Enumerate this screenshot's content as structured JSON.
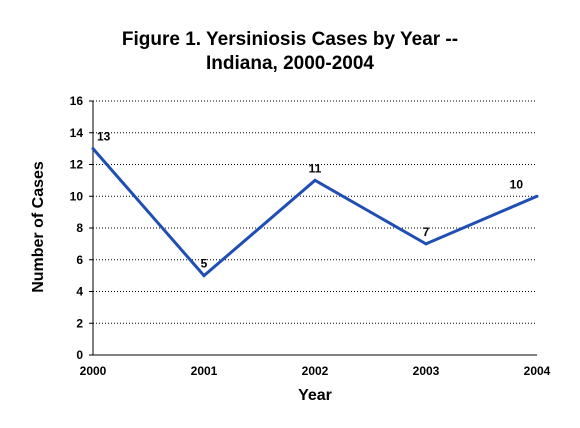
{
  "chart_data": {
    "type": "line",
    "title_line1": "Figure 1.  Yersiniosis Cases by Year --",
    "title_line2": "Indiana, 2000-2004",
    "xlabel": "Year",
    "ylabel": "Number of Cases",
    "categories": [
      "2000",
      "2001",
      "2002",
      "2003",
      "2004"
    ],
    "values": [
      13,
      5,
      11,
      7,
      10
    ],
    "data_labels": [
      "13",
      "5",
      "11",
      "7",
      "10"
    ],
    "yticks": [
      0,
      2,
      4,
      6,
      8,
      10,
      12,
      14,
      16
    ],
    "ylim": [
      0,
      16
    ],
    "grid": "horizontal dotted",
    "line_color": "#1f4eb4"
  }
}
